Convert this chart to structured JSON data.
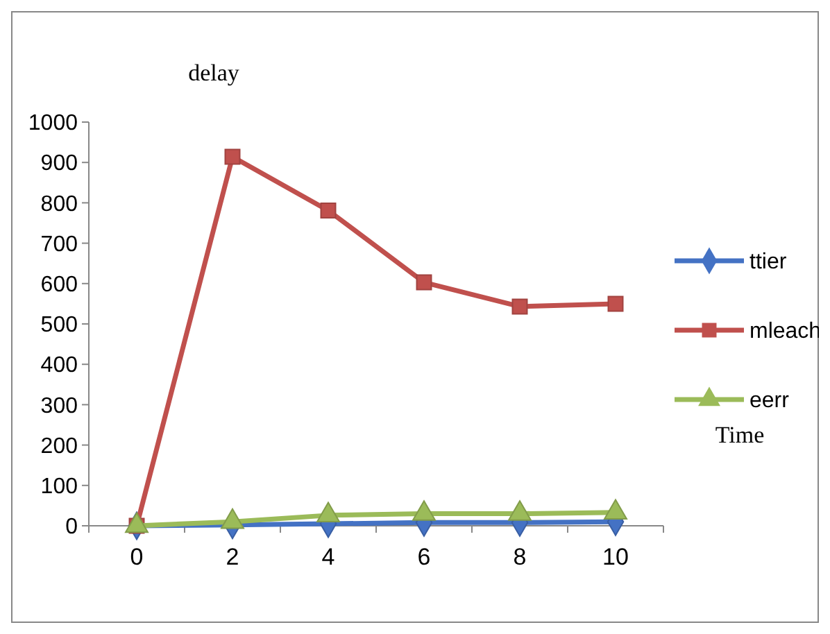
{
  "chart_data": {
    "type": "line",
    "ylabel": "delay",
    "xlabel": "Time",
    "categories": [
      "0",
      "2",
      "4",
      "6",
      "8",
      "10"
    ],
    "ylim": [
      0,
      1000
    ],
    "yticks": [
      0,
      100,
      200,
      300,
      400,
      500,
      600,
      700,
      800,
      900,
      1000
    ],
    "grid": false,
    "legend": "right",
    "line_style": "solid",
    "series": [
      {
        "name": "ttier",
        "color": "#4472c4",
        "marker": "diamond",
        "values": [
          0,
          2,
          5,
          8,
          8,
          10
        ]
      },
      {
        "name": "mleach",
        "color": "#c0504d",
        "marker": "square",
        "values": [
          0,
          914,
          781,
          603,
          543,
          550
        ]
      },
      {
        "name": "eerr",
        "color": "#9bbb59",
        "marker": "triangle",
        "values": [
          0,
          10,
          26,
          30,
          30,
          33
        ]
      }
    ]
  }
}
